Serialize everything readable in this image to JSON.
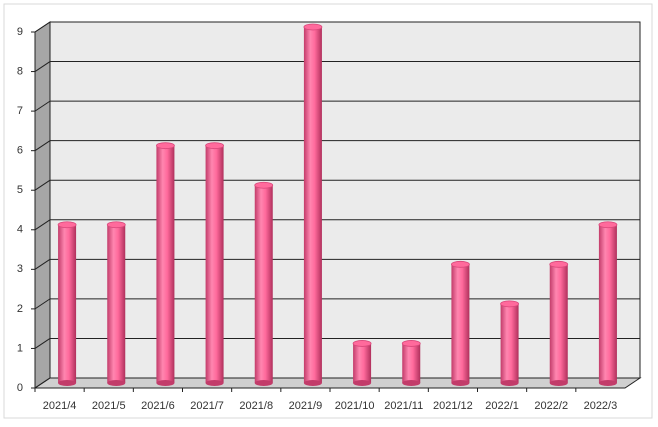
{
  "chart_data": {
    "type": "bar",
    "categories": [
      "2021/4",
      "2021/5",
      "2021/6",
      "2021/7",
      "2021/8",
      "2021/9",
      "2021/10",
      "2021/11",
      "2021/12",
      "2022/1",
      "2022/2",
      "2022/3"
    ],
    "values": [
      4,
      4,
      6,
      6,
      5,
      9,
      1,
      1,
      3,
      2,
      3,
      4
    ],
    "color": "#ff6a9c",
    "ylim": [
      0,
      9
    ],
    "yticks": [
      0,
      1,
      2,
      3,
      4,
      5,
      6,
      7,
      8,
      9
    ],
    "grid": true
  }
}
